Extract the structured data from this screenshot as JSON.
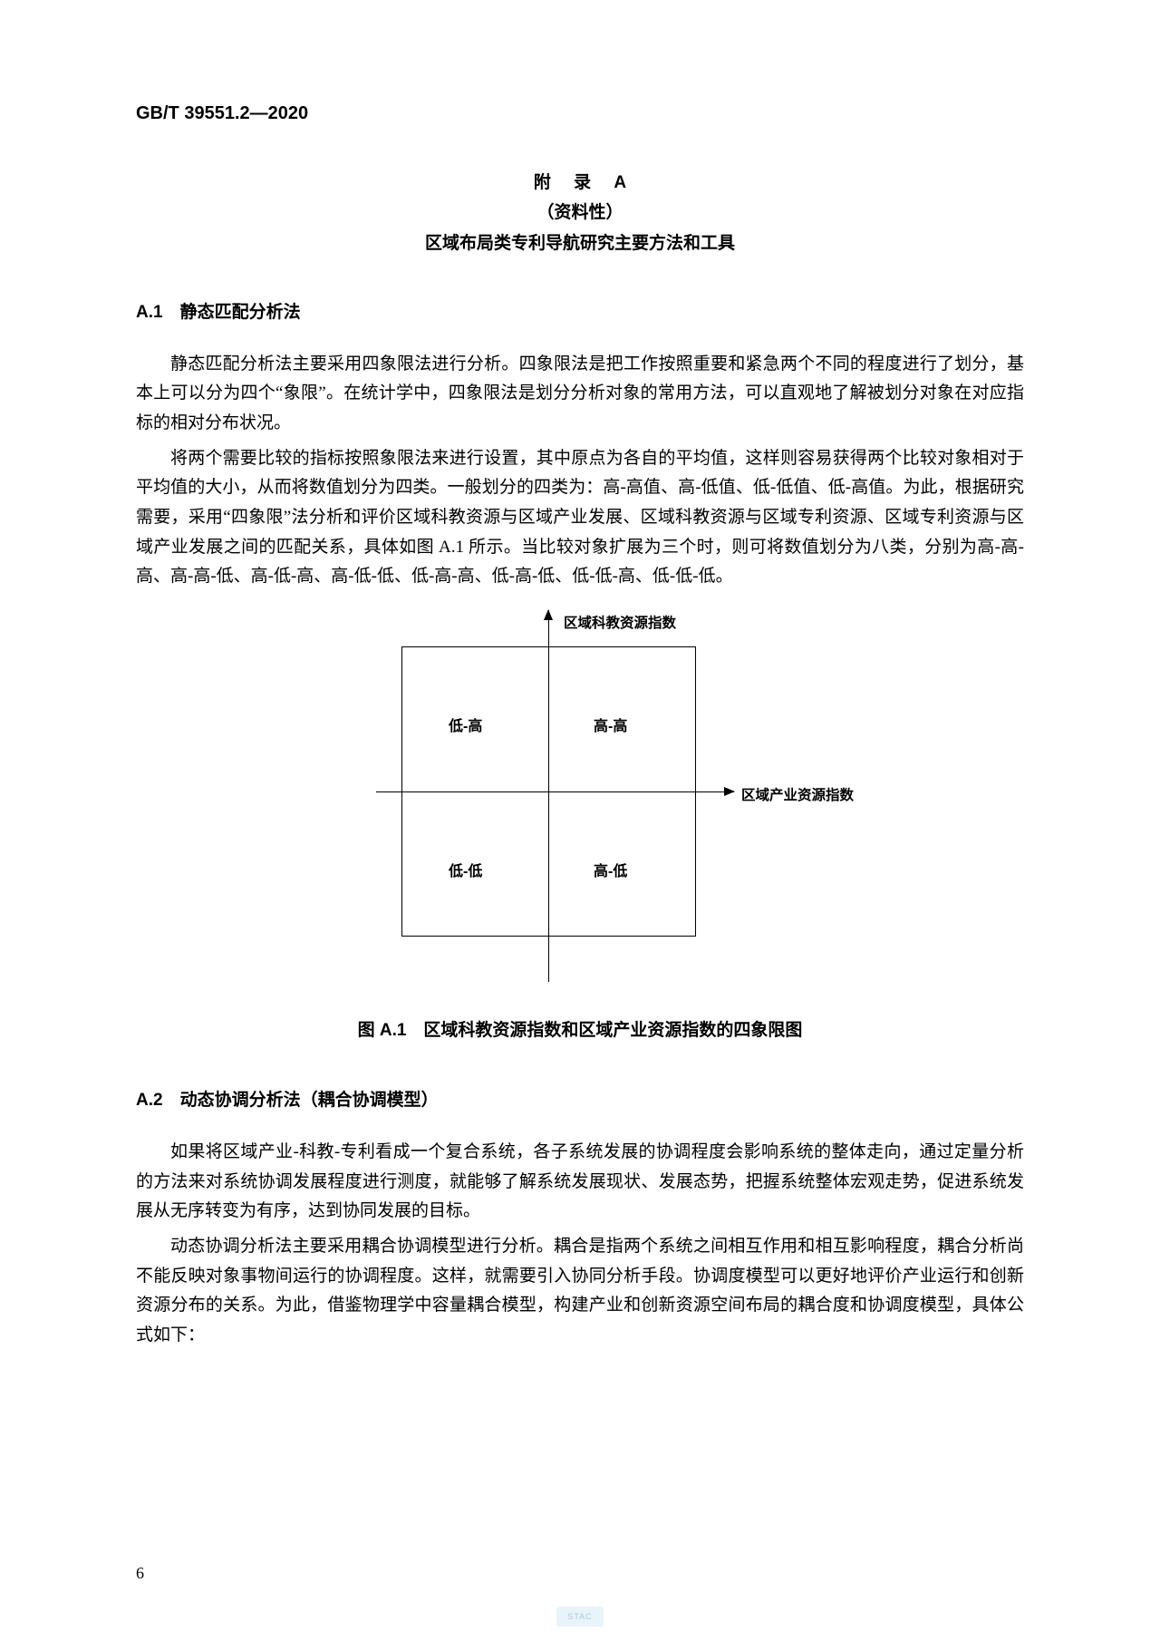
{
  "doc_number": "GB/T 39551.2—2020",
  "appendix": {
    "line1": "附 录 A",
    "line2": "（资料性）",
    "line3": "区域布局类专利导航研究主要方法和工具"
  },
  "sectionA1": {
    "heading": "A.1　静态匹配分析法",
    "p1": "静态匹配分析法主要采用四象限法进行分析。四象限法是把工作按照重要和紧急两个不同的程度进行了划分，基本上可以分为四个“象限”。在统计学中，四象限法是划分分析对象的常用方法，可以直观地了解被划分对象在对应指标的相对分布状况。",
    "p2": "将两个需要比较的指标按照象限法来进行设置，其中原点为各自的平均值，这样则容易获得两个比较对象相对于平均值的大小，从而将数值划分为四类。一般划分的四类为：高-高值、高-低值、低-低值、低-高值。为此，根据研究需要，采用“四象限”法分析和评价区域科教资源与区域产业发展、区域科教资源与区域专利资源、区域专利资源与区域产业发展之间的匹配关系，具体如图 A.1 所示。当比较对象扩展为三个时，则可将数值划分为八类，分别为高-高-高、高-高-低、高-低-高、高-低-低、低-高-高、低-高-低、低-低-高、低-低-低。"
  },
  "diagram": {
    "axis_v_label": "区域科教资源指数",
    "axis_h_label": "区域产业资源指数",
    "quadrants": {
      "top_left": "低-高",
      "top_right": "高-高",
      "bottom_left": "低-低",
      "bottom_right": "高-低"
    },
    "caption": "图 A.1　区域科教资源指数和区域产业资源指数的四象限图"
  },
  "sectionA2": {
    "heading": "A.2　动态协调分析法（耦合协调模型）",
    "p1": "如果将区域产业-科教-专利看成一个复合系统，各子系统发展的协调程度会影响系统的整体走向，通过定量分析的方法来对系统协调发展程度进行测度，就能够了解系统发展现状、发展态势，把握系统整体宏观走势，促进系统发展从无序转变为有序，达到协同发展的目标。",
    "p2": "动态协调分析法主要采用耦合协调模型进行分析。耦合是指两个系统之间相互作用和相互影响程度，耦合分析尚不能反映对象事物间运行的协调程度。这样，就需要引入协同分析手段。协调度模型可以更好地评价产业运行和创新资源分布的关系。为此，借鉴物理学中容量耦合模型，构建产业和创新资源空间布局的耦合度和协调度模型，具体公式如下："
  },
  "page_number": "6",
  "watermark": "STAC"
}
